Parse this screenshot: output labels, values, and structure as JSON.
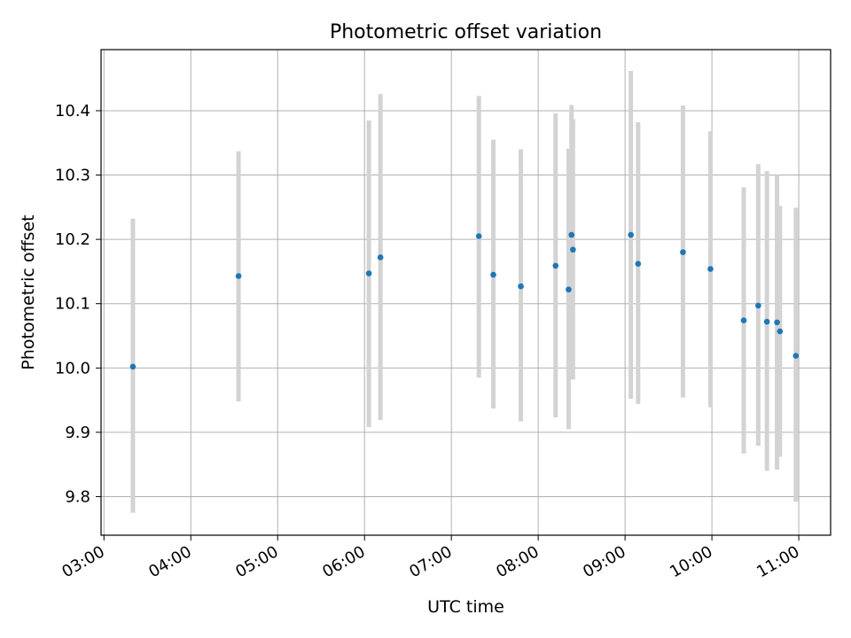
{
  "chart_data": {
    "type": "scatter",
    "title": "Photometric offset variation",
    "xlabel": "UTC time",
    "ylabel": "Photometric offset",
    "xlim": [
      "02:58",
      "11:22"
    ],
    "ylim": [
      9.74,
      10.495
    ],
    "grid": true,
    "x_ticks": [
      "03:00",
      "04:00",
      "05:00",
      "06:00",
      "07:00",
      "08:00",
      "09:00",
      "10:00",
      "11:00"
    ],
    "y_ticks": [
      "9.8",
      "9.9",
      "10.0",
      "10.1",
      "10.2",
      "10.3",
      "10.4"
    ],
    "series": [
      {
        "marker_color": "#1f77b4",
        "errorbar_color": "#d3d3d3",
        "points": [
          {
            "x": "03:20",
            "y": 10.002,
            "yerr_low": 9.775,
            "yerr_high": 10.232
          },
          {
            "x": "04:33",
            "y": 10.143,
            "yerr_low": 9.948,
            "yerr_high": 10.337
          },
          {
            "x": "06:03",
            "y": 10.147,
            "yerr_low": 9.908,
            "yerr_high": 10.385
          },
          {
            "x": "06:11",
            "y": 10.172,
            "yerr_low": 9.919,
            "yerr_high": 10.426
          },
          {
            "x": "07:19",
            "y": 10.205,
            "yerr_low": 9.985,
            "yerr_high": 10.423
          },
          {
            "x": "07:29",
            "y": 10.145,
            "yerr_low": 9.937,
            "yerr_high": 10.355
          },
          {
            "x": "07:48",
            "y": 10.127,
            "yerr_low": 9.917,
            "yerr_high": 10.34
          },
          {
            "x": "08:12",
            "y": 10.159,
            "yerr_low": 9.923,
            "yerr_high": 10.396
          },
          {
            "x": "08:21",
            "y": 10.122,
            "yerr_low": 9.905,
            "yerr_high": 10.341
          },
          {
            "x": "08:23",
            "y": 10.207,
            "yerr_low": 9.99,
            "yerr_high": 10.409
          },
          {
            "x": "08:24",
            "y": 10.184,
            "yerr_low": 9.982,
            "yerr_high": 10.387
          },
          {
            "x": "09:04",
            "y": 10.207,
            "yerr_low": 9.952,
            "yerr_high": 10.462
          },
          {
            "x": "09:09",
            "y": 10.162,
            "yerr_low": 9.944,
            "yerr_high": 10.382
          },
          {
            "x": "09:40",
            "y": 10.18,
            "yerr_low": 9.954,
            "yerr_high": 10.408
          },
          {
            "x": "09:59",
            "y": 10.154,
            "yerr_low": 9.939,
            "yerr_high": 10.368
          },
          {
            "x": "10:22",
            "y": 10.074,
            "yerr_low": 9.867,
            "yerr_high": 10.281
          },
          {
            "x": "10:32",
            "y": 10.097,
            "yerr_low": 9.879,
            "yerr_high": 10.317
          },
          {
            "x": "10:38",
            "y": 10.072,
            "yerr_low": 9.84,
            "yerr_high": 10.306
          },
          {
            "x": "10:45",
            "y": 10.071,
            "yerr_low": 9.842,
            "yerr_high": 10.3
          },
          {
            "x": "10:47",
            "y": 10.057,
            "yerr_low": 9.862,
            "yerr_high": 10.252
          },
          {
            "x": "10:58",
            "y": 10.019,
            "yerr_low": 9.792,
            "yerr_high": 10.249
          }
        ]
      }
    ]
  }
}
